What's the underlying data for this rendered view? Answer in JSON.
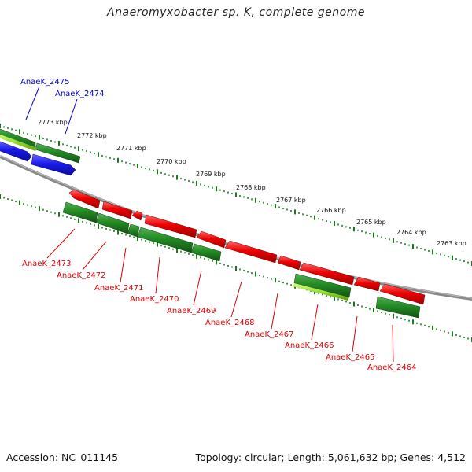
{
  "title": "Anaeromyxobacter sp. K, complete genome",
  "accession": "Accession: NC_011145",
  "summary": "Topology: circular; Length: 5,061,632 bp; Genes: 4,512",
  "colors": {
    "forward_gene": "#ee0000",
    "reverse_gene": "#228b22",
    "reverse_gene_highlight": "#99dd33",
    "blue_gene": "#1a1aee",
    "backbone": "#888888",
    "ticks": "#1a7a1a",
    "label_top": "#0000cc",
    "label_bottom": "#dd0000"
  },
  "kbp_ticks": [
    "2773 kbp",
    "2772 kbp",
    "2771 kbp",
    "2770 kbp",
    "2769 kbp",
    "2768 kbp",
    "2767 kbp",
    "2766 kbp",
    "2765 kbp",
    "2764 kbp",
    "2763 kbp"
  ],
  "genes_top": [
    "AnaeK_2475",
    "AnaeK_2474"
  ],
  "genes_bottom": [
    "AnaeK_2473",
    "AnaeK_2472",
    "AnaeK_2471",
    "AnaeK_2470",
    "AnaeK_2469",
    "AnaeK_2468",
    "AnaeK_2467",
    "AnaeK_2466",
    "AnaeK_2465",
    "AnaeK_2464"
  ]
}
